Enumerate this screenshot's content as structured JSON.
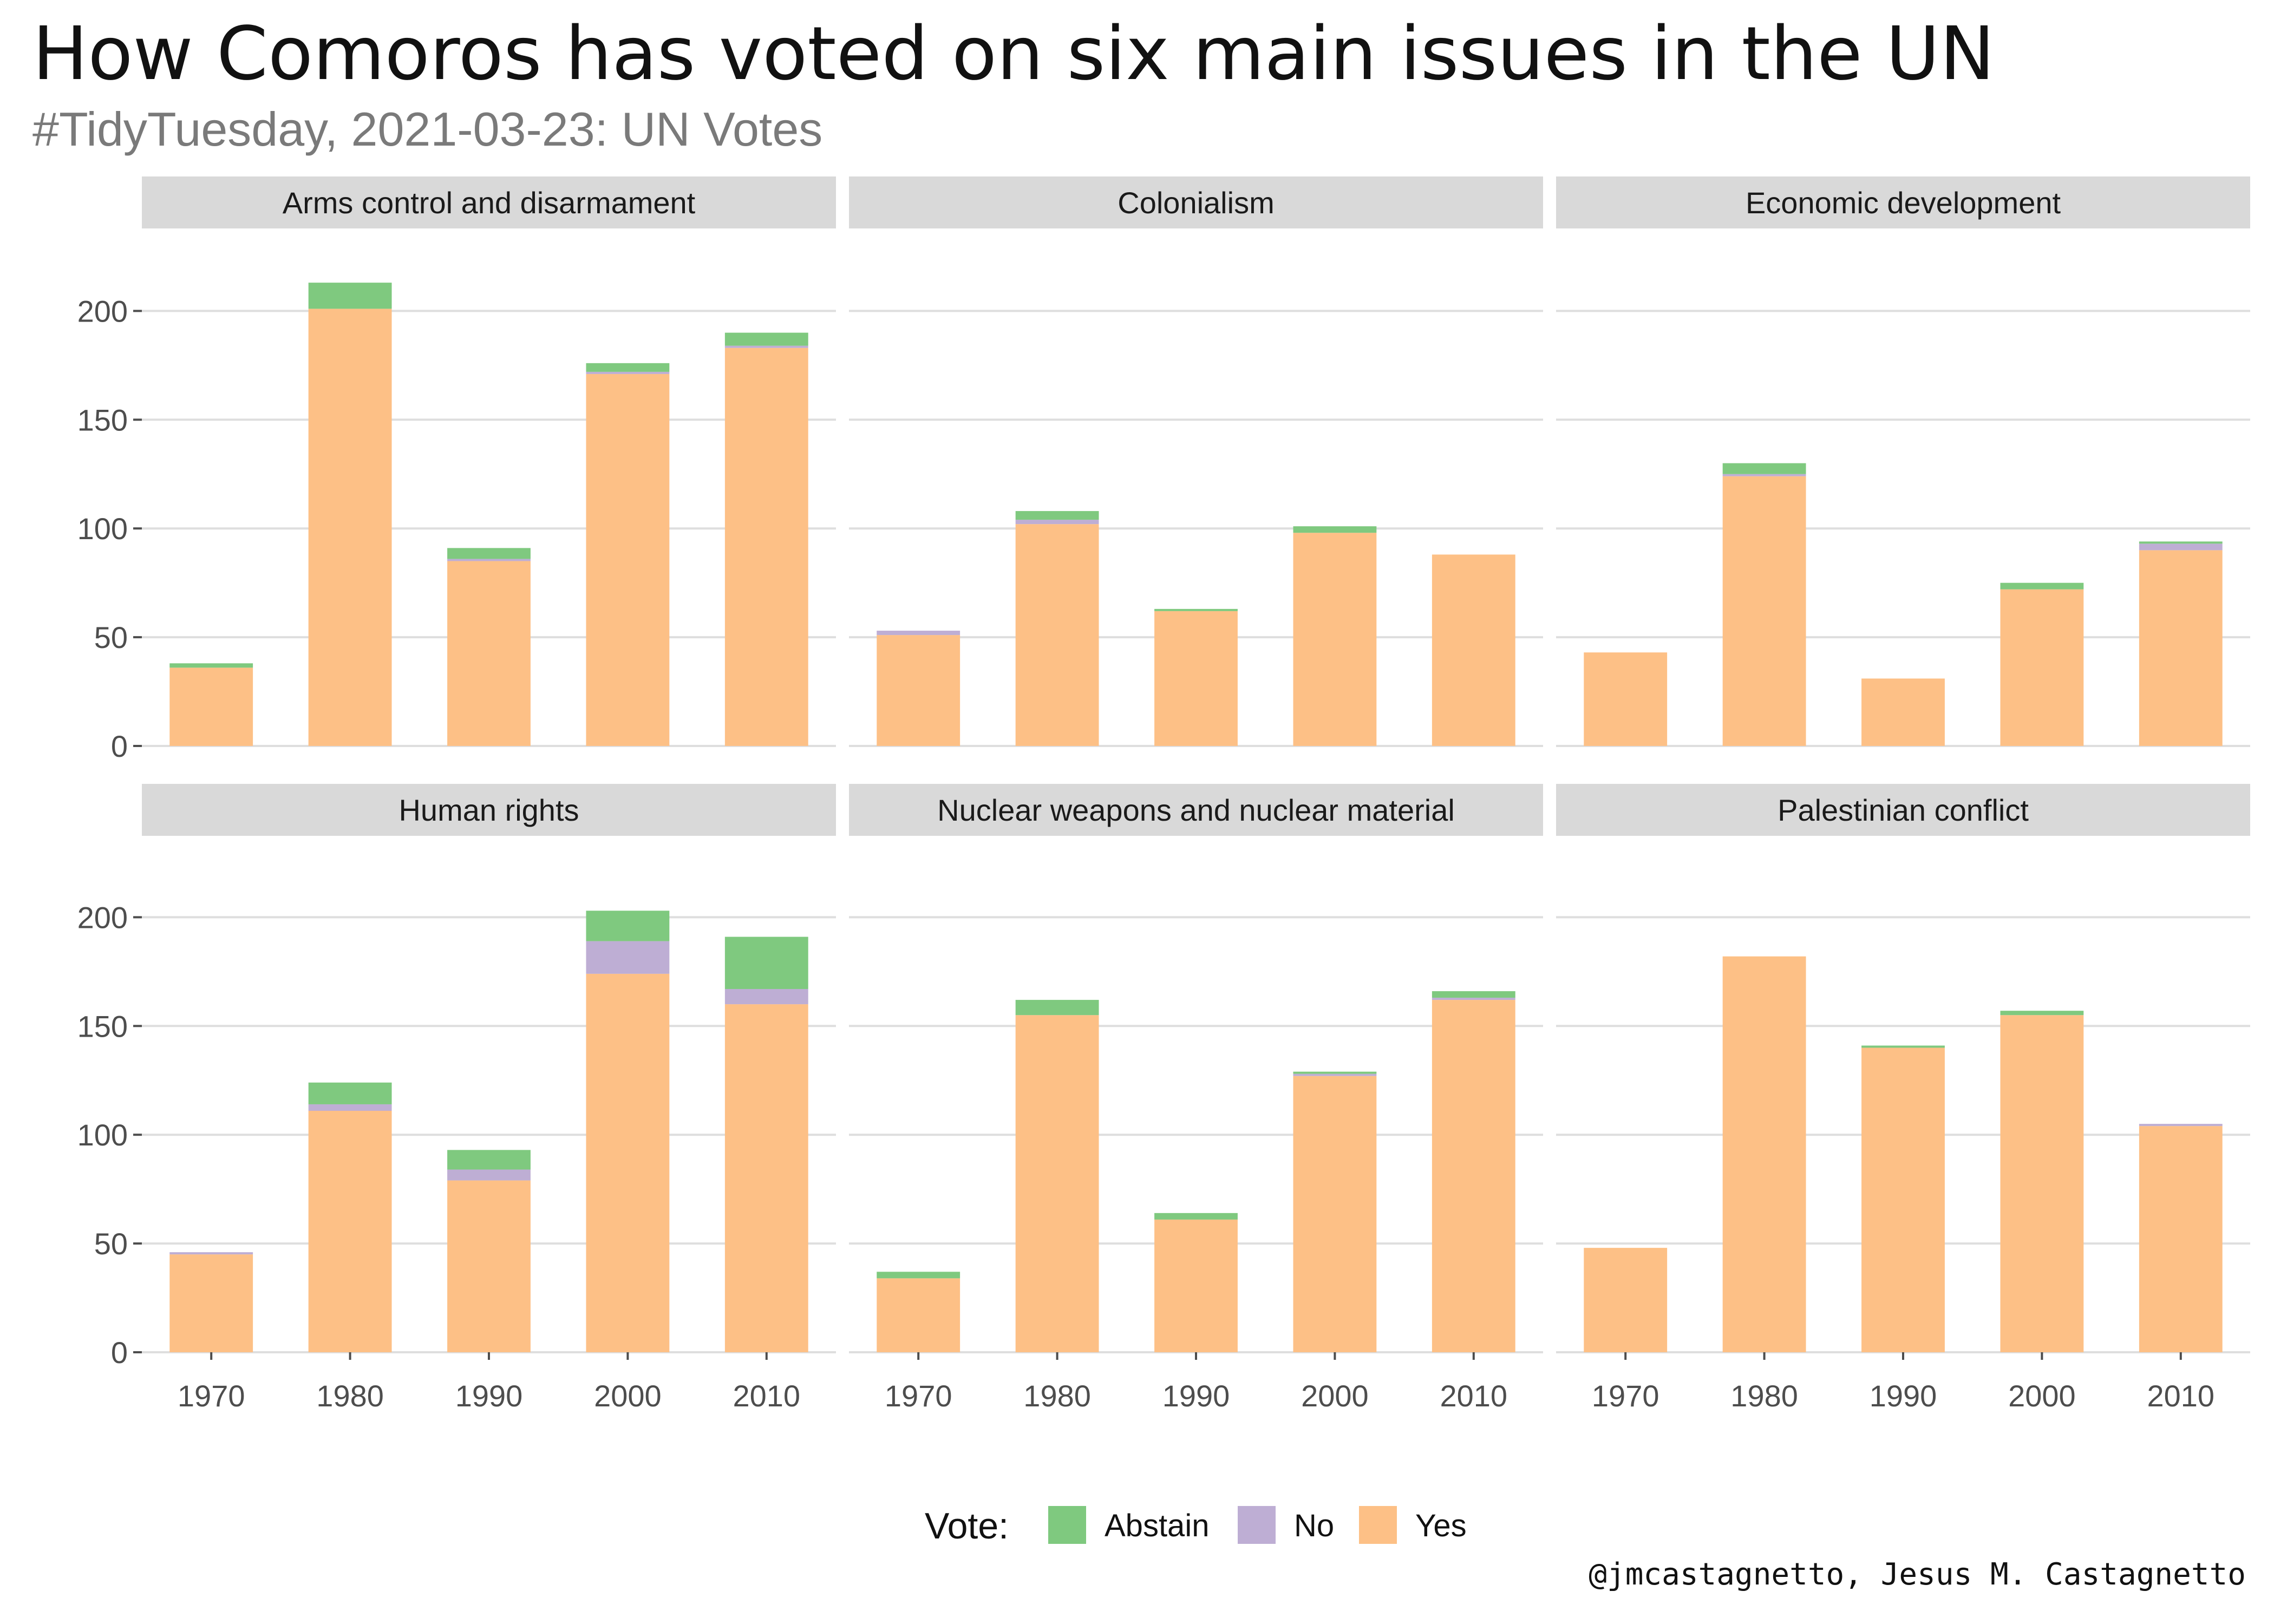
{
  "title": "How Comoros has voted on six main issues in the UN",
  "subtitle": "#TidyTuesday, 2021-03-23: UN Votes",
  "caption": "@jmcastagnetto, Jesus M. Castagnetto",
  "colors": {
    "Abstain": "#7fc97f",
    "No": "#beaed4",
    "Yes": "#fdc086",
    "strip": "#d9d9d9",
    "grid": "#dedede"
  },
  "chart_data": {
    "type": "bar",
    "stacked": true,
    "facet_layout": "2 rows x 3 columns",
    "categories": [
      "1970",
      "1980",
      "1990",
      "2000",
      "2010"
    ],
    "y_ticks": [
      0,
      50,
      100,
      150,
      200
    ],
    "ylim": [
      0,
      222
    ],
    "grid": true,
    "legend": {
      "title": "Vote:",
      "position": "bottom",
      "entries": [
        "Abstain",
        "No",
        "Yes"
      ]
    },
    "stack_order": [
      "Yes",
      "No",
      "Abstain"
    ],
    "facets": [
      {
        "name": "Arms control and disarmament",
        "series": {
          "Yes": [
            36,
            201,
            85,
            171,
            183
          ],
          "No": [
            0,
            0,
            1,
            1,
            1
          ],
          "Abstain": [
            2,
            12,
            5,
            4,
            6
          ]
        }
      },
      {
        "name": "Colonialism",
        "series": {
          "Yes": [
            51,
            102,
            62,
            98,
            88
          ],
          "No": [
            2,
            2,
            0,
            0,
            0
          ],
          "Abstain": [
            0,
            4,
            1,
            3,
            0
          ]
        }
      },
      {
        "name": "Economic development",
        "series": {
          "Yes": [
            43,
            124,
            31,
            72,
            90
          ],
          "No": [
            0,
            1,
            0,
            0,
            3
          ],
          "Abstain": [
            0,
            5,
            0,
            3,
            1
          ]
        }
      },
      {
        "name": "Human rights",
        "series": {
          "Yes": [
            45,
            111,
            79,
            174,
            160
          ],
          "No": [
            1,
            3,
            5,
            15,
            7
          ],
          "Abstain": [
            0,
            10,
            9,
            14,
            24
          ]
        }
      },
      {
        "name": "Nuclear weapons and nuclear material",
        "series": {
          "Yes": [
            34,
            155,
            61,
            127,
            162
          ],
          "No": [
            0,
            0,
            0,
            1,
            1
          ],
          "Abstain": [
            3,
            7,
            3,
            1,
            3
          ]
        }
      },
      {
        "name": "Palestinian conflict",
        "series": {
          "Yes": [
            48,
            182,
            140,
            155,
            104
          ],
          "No": [
            0,
            0,
            0,
            0,
            1
          ],
          "Abstain": [
            0,
            0,
            1,
            2,
            0
          ]
        }
      }
    ]
  }
}
